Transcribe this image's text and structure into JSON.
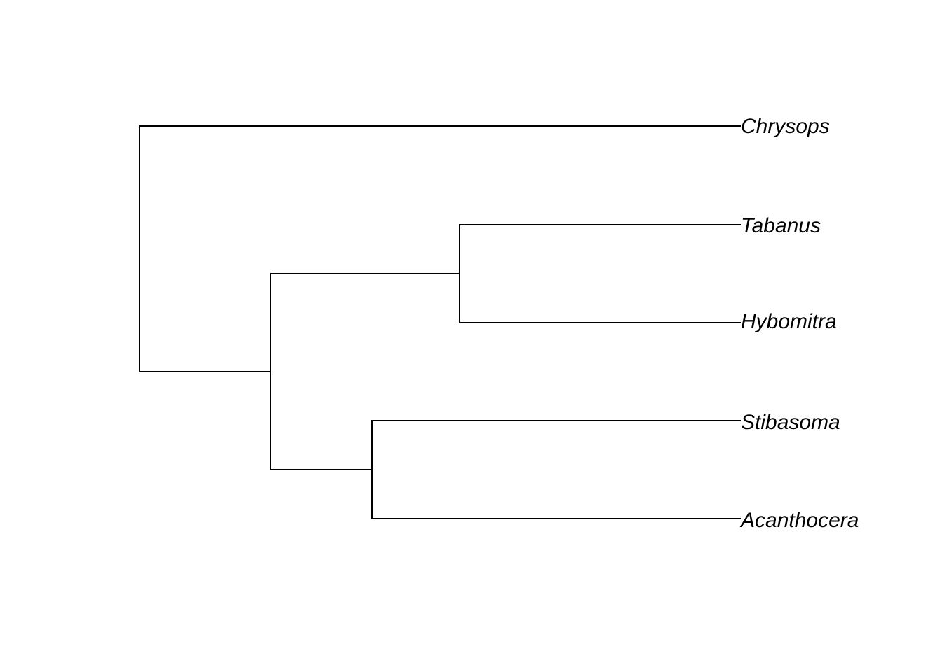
{
  "tree": {
    "tips": [
      {
        "id": "chrysops",
        "label": "Chrysops"
      },
      {
        "id": "tabanus",
        "label": "Tabanus"
      },
      {
        "id": "hybomitra",
        "label": "Hybomitra"
      },
      {
        "id": "stibasoma",
        "label": "Stibasoma"
      },
      {
        "id": "acanthocera",
        "label": "Acanthocera"
      }
    ],
    "newick": "(Chrysops,((Tabanus,Hybomitra),(Stibasoma,Acanthocera)));",
    "line_color": "#000000",
    "label_style": "italic"
  }
}
